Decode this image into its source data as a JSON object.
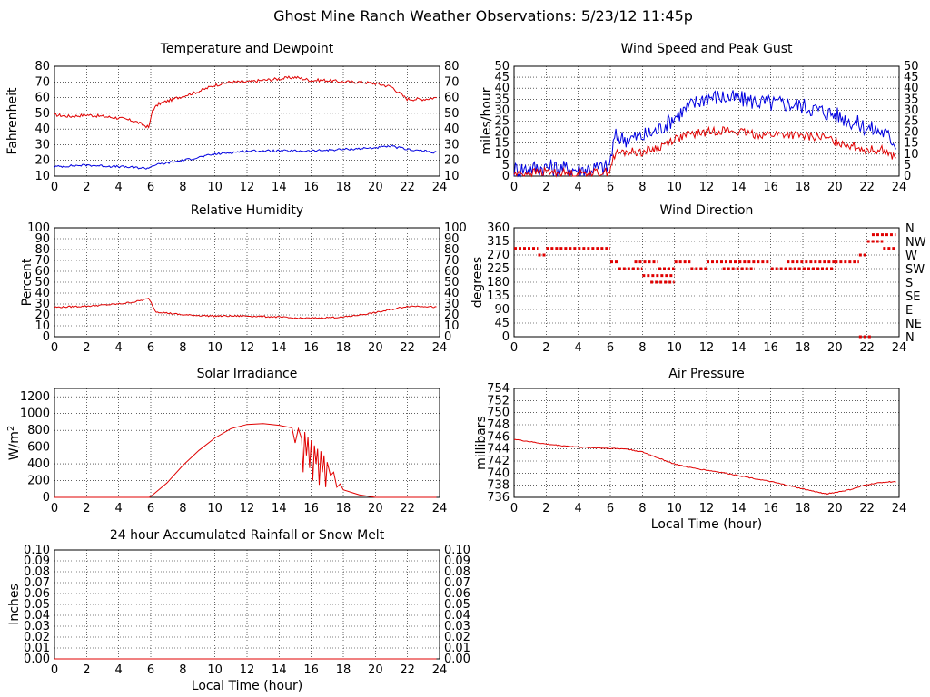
{
  "page": {
    "title": "Ghost Mine Ranch Weather Observations: 5/23/12 11:45p"
  },
  "colors": {
    "red": "#e00000",
    "blue": "#0000e0",
    "grid": "#000000"
  },
  "chart_data": [
    {
      "id": "temperature",
      "type": "line",
      "title": "Temperature and Dewpoint",
      "ylabel": "Fahrenheit",
      "xlabel": "",
      "xlim": [
        0,
        24
      ],
      "ylim": [
        10,
        80
      ],
      "x_ticks": [
        0,
        2,
        4,
        6,
        8,
        10,
        12,
        14,
        16,
        18,
        20,
        22,
        24
      ],
      "y_ticks": [
        10,
        20,
        30,
        40,
        50,
        60,
        70,
        80
      ],
      "right_axis": true,
      "grid": true,
      "series": [
        {
          "color": "red",
          "noise": 1.0,
          "points": [
            [
              0,
              49
            ],
            [
              1,
              48
            ],
            [
              2,
              49
            ],
            [
              3,
              48
            ],
            [
              4,
              47
            ],
            [
              5,
              45
            ],
            [
              5.9,
              41
            ],
            [
              6.1,
              52
            ],
            [
              6.5,
              56
            ],
            [
              8,
              61
            ],
            [
              9,
              64
            ],
            [
              10,
              68
            ],
            [
              11,
              70
            ],
            [
              12,
              70
            ],
            [
              13,
              71
            ],
            [
              14,
              72
            ],
            [
              15,
              73
            ],
            [
              16,
              71
            ],
            [
              17,
              71
            ],
            [
              18,
              70
            ],
            [
              19,
              70
            ],
            [
              20,
              69
            ],
            [
              21,
              67
            ],
            [
              21.6,
              62
            ],
            [
              22,
              59
            ],
            [
              23,
              59
            ],
            [
              23.8,
              60
            ]
          ]
        },
        {
          "color": "blue",
          "noise": 0.7,
          "points": [
            [
              0,
              16
            ],
            [
              2,
              17
            ],
            [
              4,
              16
            ],
            [
              5.8,
              15
            ],
            [
              6.2,
              17
            ],
            [
              8,
              20
            ],
            [
              10,
              24
            ],
            [
              12,
              26
            ],
            [
              14,
              26
            ],
            [
              16,
              26
            ],
            [
              18,
              27
            ],
            [
              20,
              28
            ],
            [
              21,
              29
            ],
            [
              22,
              27
            ],
            [
              23,
              26
            ],
            [
              23.8,
              25
            ]
          ]
        }
      ]
    },
    {
      "id": "wind-speed",
      "type": "line",
      "title": "Wind Speed and Peak Gust",
      "ylabel": "miles/hour",
      "xlabel": "",
      "xlim": [
        0,
        24
      ],
      "ylim": [
        0,
        50
      ],
      "x_ticks": [
        0,
        2,
        4,
        6,
        8,
        10,
        12,
        14,
        16,
        18,
        20,
        22,
        24
      ],
      "y_ticks": [
        0,
        5,
        10,
        15,
        20,
        25,
        30,
        35,
        40,
        45,
        50
      ],
      "right_axis": true,
      "grid": true,
      "series": [
        {
          "color": "blue",
          "noise": 4.0,
          "points": [
            [
              0,
              3
            ],
            [
              2,
              4
            ],
            [
              4,
              3
            ],
            [
              5.9,
              4
            ],
            [
              6.3,
              18
            ],
            [
              7,
              17
            ],
            [
              8,
              18
            ],
            [
              9,
              21
            ],
            [
              10,
              27
            ],
            [
              11,
              32
            ],
            [
              12,
              36
            ],
            [
              13,
              36
            ],
            [
              14,
              35
            ],
            [
              15,
              34
            ],
            [
              16,
              33
            ],
            [
              17,
              33
            ],
            [
              18,
              32
            ],
            [
              19,
              30
            ],
            [
              20,
              28
            ],
            [
              21,
              25
            ],
            [
              22,
              22
            ],
            [
              23,
              20
            ],
            [
              23.8,
              15
            ]
          ]
        },
        {
          "color": "red",
          "noise": 2.0,
          "points": [
            [
              0,
              1
            ],
            [
              2,
              2
            ],
            [
              4,
              1
            ],
            [
              5.9,
              2
            ],
            [
              6.3,
              10
            ],
            [
              7,
              11
            ],
            [
              8,
              11
            ],
            [
              9,
              13
            ],
            [
              10,
              17
            ],
            [
              11,
              19
            ],
            [
              12,
              20
            ],
            [
              13,
              21
            ],
            [
              14,
              20
            ],
            [
              15,
              19
            ],
            [
              16,
              19
            ],
            [
              17,
              19
            ],
            [
              18,
              18
            ],
            [
              19,
              18
            ],
            [
              20,
              16
            ],
            [
              21,
              14
            ],
            [
              22,
              12
            ],
            [
              23,
              12
            ],
            [
              23.8,
              8
            ]
          ]
        }
      ]
    },
    {
      "id": "humidity",
      "type": "line",
      "title": "Relative Humidity",
      "ylabel": "Percent",
      "xlabel": "",
      "xlim": [
        0,
        24
      ],
      "ylim": [
        0,
        100
      ],
      "x_ticks": [
        0,
        2,
        4,
        6,
        8,
        10,
        12,
        14,
        16,
        18,
        20,
        22,
        24
      ],
      "y_ticks": [
        0,
        10,
        20,
        30,
        40,
        50,
        60,
        70,
        80,
        90,
        100
      ],
      "right_axis": true,
      "grid": true,
      "series": [
        {
          "color": "red",
          "noise": 0.7,
          "points": [
            [
              0,
              27
            ],
            [
              2,
              28
            ],
            [
              4,
              30
            ],
            [
              5,
              32
            ],
            [
              5.9,
              35
            ],
            [
              6.3,
              23
            ],
            [
              8,
              20
            ],
            [
              10,
              19
            ],
            [
              12,
              19
            ],
            [
              14,
              18
            ],
            [
              15,
              17
            ],
            [
              16,
              17
            ],
            [
              18,
              18
            ],
            [
              19,
              20
            ],
            [
              20,
              22
            ],
            [
              21,
              25
            ],
            [
              22,
              28
            ],
            [
              23,
              28
            ],
            [
              23.8,
              27
            ]
          ]
        }
      ]
    },
    {
      "id": "wind-direction",
      "type": "scatter",
      "title": "Wind Direction",
      "ylabel": "degrees",
      "xlabel": "",
      "xlim": [
        0,
        24
      ],
      "ylim": [
        0,
        360
      ],
      "x_ticks": [
        0,
        2,
        4,
        6,
        8,
        10,
        12,
        14,
        16,
        18,
        20,
        22,
        24
      ],
      "y_ticks": [
        0,
        45,
        90,
        135,
        180,
        225,
        270,
        315,
        360
      ],
      "right_tick_labels": [
        "N",
        "NE",
        "E",
        "SE",
        "S",
        "SW",
        "W",
        "NW",
        "N"
      ],
      "grid": true,
      "series": [
        {
          "color": "red",
          "segments": [
            [
              0,
              1.5,
              292
            ],
            [
              1.5,
              2,
              270
            ],
            [
              2,
              6,
              292
            ],
            [
              6,
              6.5,
              247
            ],
            [
              6.5,
              8,
              225
            ],
            [
              7.5,
              9,
              247
            ],
            [
              8,
              10,
              202
            ],
            [
              8.5,
              10,
              180
            ],
            [
              9,
              10,
              225
            ],
            [
              10,
              11,
              247
            ],
            [
              11,
              12,
              225
            ],
            [
              12,
              14,
              247
            ],
            [
              13,
              15,
              225
            ],
            [
              14,
              16,
              247
            ],
            [
              16,
              18,
              225
            ],
            [
              17,
              20,
              247
            ],
            [
              18,
              20,
              225
            ],
            [
              20,
              21.5,
              247
            ],
            [
              21.5,
              22,
              270
            ],
            [
              22,
              23,
              315
            ],
            [
              22.3,
              23.8,
              337
            ],
            [
              23,
              23.8,
              292
            ],
            [
              21.5,
              22.3,
              0
            ]
          ]
        }
      ]
    },
    {
      "id": "solar",
      "type": "line",
      "title": "Solar Irradiance",
      "ylabel": "W/m2",
      "xlabel": "",
      "xlim": [
        0,
        24
      ],
      "ylim": [
        0,
        1300
      ],
      "x_ticks": [
        0,
        2,
        4,
        6,
        8,
        10,
        12,
        14,
        16,
        18,
        20,
        22,
        24
      ],
      "y_ticks": [
        0,
        200,
        400,
        600,
        800,
        1000,
        1200
      ],
      "right_axis": false,
      "grid": true,
      "series": [
        {
          "color": "red",
          "noise": 0,
          "points": [
            [
              0,
              0
            ],
            [
              5.9,
              0
            ],
            [
              6,
              10
            ],
            [
              7,
              170
            ],
            [
              8,
              380
            ],
            [
              9,
              560
            ],
            [
              10,
              710
            ],
            [
              11,
              820
            ],
            [
              12,
              870
            ],
            [
              13,
              880
            ],
            [
              14,
              860
            ],
            [
              14.8,
              830
            ],
            [
              15,
              650
            ],
            [
              15.2,
              820
            ],
            [
              15.4,
              700
            ],
            [
              15.5,
              300
            ],
            [
              15.6,
              780
            ],
            [
              15.7,
              500
            ],
            [
              15.8,
              720
            ],
            [
              15.9,
              350
            ],
            [
              16,
              680
            ],
            [
              16.1,
              200
            ],
            [
              16.2,
              620
            ],
            [
              16.3,
              400
            ],
            [
              16.4,
              580
            ],
            [
              16.5,
              150
            ],
            [
              16.6,
              550
            ],
            [
              16.7,
              300
            ],
            [
              16.8,
              500
            ],
            [
              16.9,
              120
            ],
            [
              17,
              420
            ],
            [
              17.2,
              260
            ],
            [
              17.4,
              300
            ],
            [
              17.6,
              120
            ],
            [
              17.8,
              160
            ],
            [
              18,
              90
            ],
            [
              18.5,
              60
            ],
            [
              19,
              30
            ],
            [
              19.5,
              15
            ],
            [
              20,
              0
            ],
            [
              23.8,
              0
            ]
          ]
        }
      ]
    },
    {
      "id": "pressure",
      "type": "line",
      "title": "Air Pressure",
      "ylabel": "millibars",
      "xlabel": "Local Time (hour)",
      "xlim": [
        0,
        24
      ],
      "ylim": [
        736,
        754
      ],
      "x_ticks": [
        0,
        2,
        4,
        6,
        8,
        10,
        12,
        14,
        16,
        18,
        20,
        22,
        24
      ],
      "y_ticks": [
        736,
        738,
        740,
        742,
        744,
        746,
        748,
        750,
        752,
        754
      ],
      "right_axis": false,
      "grid": true,
      "series": [
        {
          "color": "red",
          "noise": 0.08,
          "points": [
            [
              0,
              745.6
            ],
            [
              1,
              745.2
            ],
            [
              2,
              744.8
            ],
            [
              4,
              744.3
            ],
            [
              6,
              744.1
            ],
            [
              7,
              744
            ],
            [
              8,
              743.5
            ],
            [
              9,
              742.5
            ],
            [
              10,
              741.5
            ],
            [
              11,
              740.9
            ],
            [
              12,
              740.5
            ],
            [
              13,
              740.1
            ],
            [
              14,
              739.6
            ],
            [
              16,
              738.6
            ],
            [
              17,
              738
            ],
            [
              18,
              737.4
            ],
            [
              19,
              736.8
            ],
            [
              19.5,
              736.6
            ],
            [
              20,
              736.8
            ],
            [
              21,
              737.3
            ],
            [
              22,
              738.1
            ],
            [
              23,
              738.5
            ],
            [
              23.8,
              738.6
            ]
          ]
        }
      ]
    },
    {
      "id": "rainfall",
      "type": "line",
      "title": "24 hour Accumulated Rainfall or Snow Melt",
      "ylabel": "Inches",
      "xlabel": "Local Time (hour)",
      "xlim": [
        0,
        24
      ],
      "ylim": [
        0,
        0.1
      ],
      "x_ticks": [
        0,
        2,
        4,
        6,
        8,
        10,
        12,
        14,
        16,
        18,
        20,
        22,
        24
      ],
      "y_ticks": [
        "0.00",
        "0.01",
        "0.02",
        "0.03",
        "0.04",
        "0.05",
        "0.06",
        "0.07",
        "0.08",
        "0.09",
        "0.10"
      ],
      "right_axis": true,
      "grid": true,
      "series": [
        {
          "color": "red",
          "noise": 0,
          "points": [
            [
              0,
              0
            ],
            [
              23.8,
              0
            ]
          ]
        }
      ]
    }
  ]
}
